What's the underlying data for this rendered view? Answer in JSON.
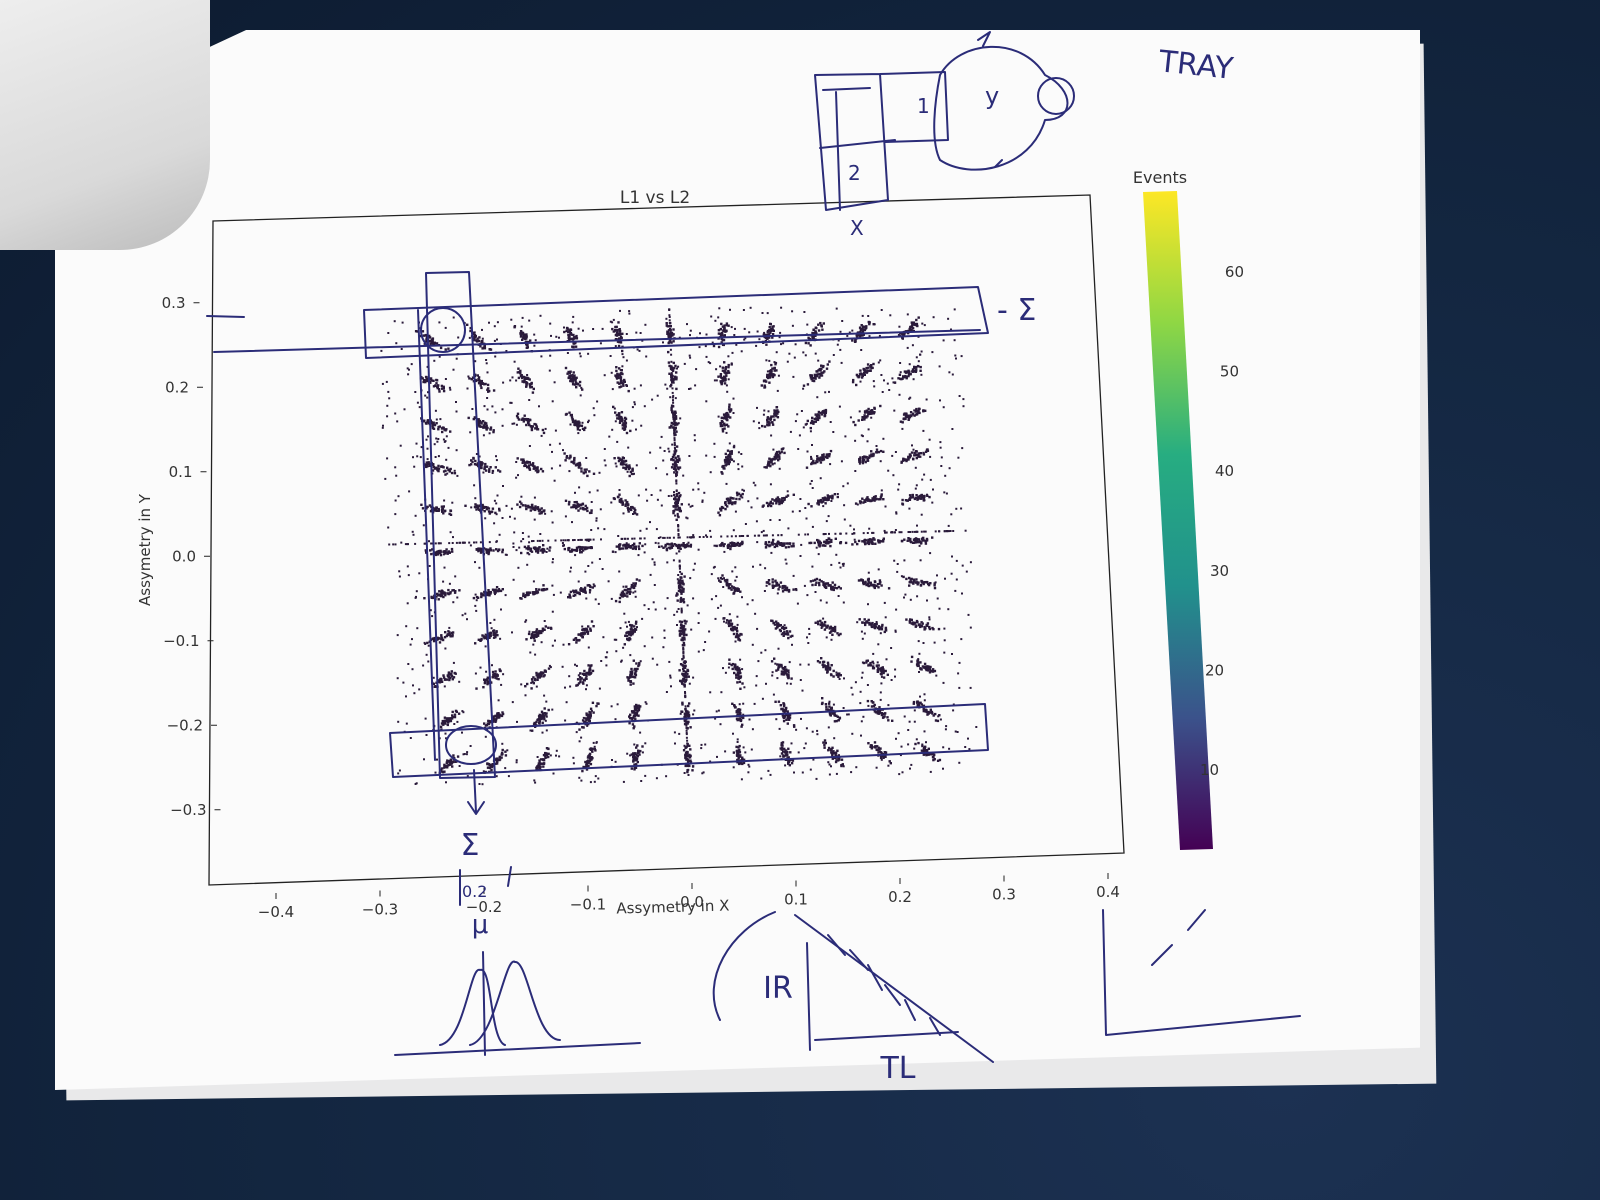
{
  "chart_data": {
    "type": "heatmap",
    "title": "L1 vs L2",
    "xlabel": "Assymetry in X",
    "ylabel": "Assymetry in Y",
    "xlim": [
      -0.45,
      0.4
    ],
    "ylim": [
      -0.4,
      0.35
    ],
    "x_ticks": [
      "−0.4",
      "−0.3",
      "−0.2",
      "−0.1",
      "0.0",
      "0.1",
      "0.2",
      "0.3",
      "0.4"
    ],
    "y_ticks": [
      "0.3",
      "0.2",
      "0.1",
      "0.0",
      "−0.1",
      "−0.2",
      "−0.3"
    ],
    "x_tick_values": [
      -0.4,
      -0.3,
      -0.2,
      -0.1,
      0.0,
      0.1,
      0.2,
      0.3,
      0.4
    ],
    "y_tick_values": [
      0.3,
      0.2,
      0.1,
      0.0,
      -0.1,
      -0.2,
      -0.3
    ],
    "colorbar": {
      "label": "Events",
      "range": [
        2,
        68
      ],
      "ticks": [
        "60",
        "50",
        "40",
        "30",
        "20",
        "10"
      ],
      "tick_values": [
        60,
        50,
        40,
        30,
        20,
        10
      ],
      "colormap": "viridis"
    },
    "cluster_grid": {
      "x_centers": [
        -0.23,
        -0.185,
        -0.14,
        -0.095,
        -0.05,
        0.0,
        0.05,
        0.095,
        0.14,
        0.185,
        0.23
      ],
      "y_centers": [
        0.25,
        0.2,
        0.15,
        0.1,
        0.05,
        0.0,
        -0.05,
        -0.1,
        -0.15,
        -0.2,
        -0.25
      ]
    },
    "grid": false,
    "legend": "colorbar-right"
  },
  "annotations": {
    "tray": "TRAY",
    "sigma_right": "- Σ",
    "sigma_below": "Σ",
    "mu": "μ",
    "ir": "IR",
    "tl": "TL",
    "label_1": "1",
    "label_2": "2",
    "label_x": "X",
    "label_y": "y",
    "tick_02": "0.2"
  },
  "colors": {
    "ink": "#2b2c78",
    "points": "#2a1a3a",
    "paper": "#fbfbfb"
  }
}
